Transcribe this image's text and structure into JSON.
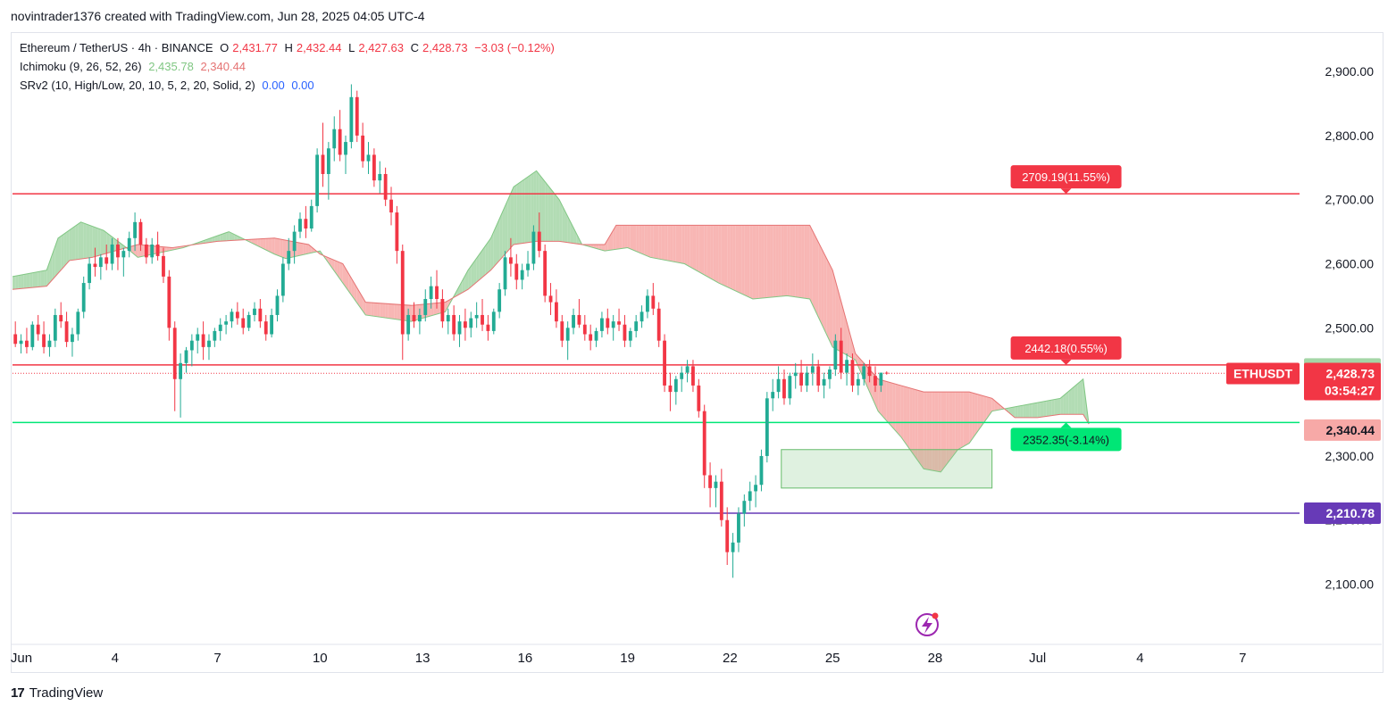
{
  "header": {
    "credit": "novintrader1376 created with TradingView.com, Jun 28, 2025 04:05 UTC-4"
  },
  "legend": {
    "symbol": "Ethereum / TetherUS · 4h · BINANCE",
    "o_label": "O",
    "o_value": "2,431.77",
    "h_label": "H",
    "h_value": "2,432.44",
    "l_label": "L",
    "l_value": "2,427.63",
    "c_label": "C",
    "c_value": "2,428.73",
    "change": "−3.03 (−0.12%)",
    "ichimoku_label": "Ichimoku (9, 26, 52, 26)",
    "ichimoku_v1": "2,435.78",
    "ichimoku_v2": "2,340.44",
    "srv2_label": "SRv2 (10, High/Low, 20, 10, 5, 2, 20, Solid, 2)",
    "srv2_v1": "0.00",
    "srv2_v2": "0.00"
  },
  "footer": {
    "brand": "TradingView",
    "logo": "17"
  },
  "colors": {
    "up": "#22ab94",
    "down": "#f23645",
    "cloud_up": "#a5d6a7",
    "cloud_down": "#f7a9a7",
    "purple": "#673ab7",
    "green_line": "#00e676"
  },
  "chart_data": {
    "type": "candlestick",
    "x_ticks": [
      "Jun",
      "4",
      "7",
      "10",
      "13",
      "16",
      "19",
      "22",
      "25",
      "28",
      "Jul",
      "4",
      "7"
    ],
    "x_tick_index": [
      0,
      18,
      36,
      54,
      72,
      90,
      108,
      126,
      144,
      162,
      180,
      198,
      216
    ],
    "y_ticks": [
      2100,
      2200,
      2300,
      2400,
      2500,
      2600,
      2700,
      2800,
      2900
    ],
    "y_tick_labels": [
      "2,100.00",
      "2,200.00",
      "2,300.00",
      "2,400.00",
      "2,500.00",
      "2,600.00",
      "2,700.00",
      "2,800.00",
      "2,900.00"
    ],
    "ylim": [
      2020,
      2960
    ],
    "xlim": [
      0,
      226
    ],
    "horizontal_lines": [
      {
        "value": 2709.19,
        "color": "#f23645"
      },
      {
        "value": 2442.18,
        "color": "#f23645"
      },
      {
        "value": 2352.35,
        "color": "#00e676"
      },
      {
        "value": 2210.78,
        "color": "#673ab7"
      }
    ],
    "target_labels": [
      {
        "text": "2709.19(11.55%)",
        "value": 2709.19,
        "index": 185,
        "bg": "#f23645"
      },
      {
        "text": "2442.18(0.55%)",
        "value": 2442.18,
        "index": 185,
        "bg": "#f23645"
      },
      {
        "text": "2352.35(-3.14%)",
        "value": 2352.35,
        "index": 185,
        "bg": "#00e676"
      }
    ],
    "price_labels": [
      {
        "text": "2,435.78",
        "value": 2435.78,
        "bg": "#a5d6a7",
        "fg": "#131722"
      },
      {
        "text": "2,428.73",
        "value": 2428.73,
        "bg": "#f23645",
        "fg": "#ffffff",
        "sub": "03:54:27"
      },
      {
        "text": "2,340.44",
        "value": 2340.44,
        "bg": "#f7a9a7",
        "fg": "#131722"
      },
      {
        "text": "2,210.78",
        "value": 2210.78,
        "bg": "#673ab7",
        "fg": "#ffffff"
      }
    ],
    "symbol_tag": "ETHUSDT",
    "demand_zone": {
      "x1": 135,
      "x2": 172,
      "y_low": 2250,
      "y_high": 2310
    },
    "cloud_a": [
      [
        0,
        2580
      ],
      [
        6,
        2590
      ],
      [
        8,
        2640
      ],
      [
        12,
        2665
      ],
      [
        16,
        2652
      ],
      [
        20,
        2625
      ],
      [
        22,
        2610
      ],
      [
        30,
        2625
      ],
      [
        38,
        2650
      ],
      [
        46,
        2615
      ],
      [
        48,
        2608
      ],
      [
        54,
        2620
      ],
      [
        62,
        2520
      ],
      [
        70,
        2510
      ],
      [
        76,
        2525
      ],
      [
        80,
        2590
      ],
      [
        84,
        2640
      ],
      [
        88,
        2720
      ],
      [
        92,
        2745
      ],
      [
        96,
        2700
      ],
      [
        100,
        2630
      ],
      [
        104,
        2620
      ],
      [
        108,
        2625
      ],
      [
        112,
        2610
      ],
      [
        118,
        2600
      ],
      [
        124,
        2570
      ],
      [
        130,
        2545
      ],
      [
        136,
        2550
      ],
      [
        140,
        2545
      ],
      [
        144,
        2470
      ],
      [
        148,
        2450
      ],
      [
        152,
        2370
      ],
      [
        156,
        2330
      ],
      [
        160,
        2280
      ],
      [
        163,
        2275
      ],
      [
        166,
        2310
      ],
      [
        168,
        2320
      ],
      [
        172,
        2370
      ],
      [
        178,
        2380
      ],
      [
        184,
        2390
      ],
      [
        188,
        2420
      ],
      [
        189,
        2350
      ]
    ],
    "cloud_b": [
      [
        0,
        2560
      ],
      [
        6,
        2565
      ],
      [
        10,
        2605
      ],
      [
        14,
        2610
      ],
      [
        18,
        2620
      ],
      [
        22,
        2630
      ],
      [
        28,
        2625
      ],
      [
        36,
        2635
      ],
      [
        46,
        2640
      ],
      [
        52,
        2630
      ],
      [
        54,
        2615
      ],
      [
        58,
        2600
      ],
      [
        62,
        2540
      ],
      [
        70,
        2535
      ],
      [
        76,
        2540
      ],
      [
        80,
        2560
      ],
      [
        84,
        2590
      ],
      [
        88,
        2630
      ],
      [
        92,
        2635
      ],
      [
        96,
        2635
      ],
      [
        100,
        2630
      ],
      [
        104,
        2630
      ],
      [
        106,
        2660
      ],
      [
        116,
        2660
      ],
      [
        124,
        2660
      ],
      [
        130,
        2660
      ],
      [
        140,
        2660
      ],
      [
        144,
        2590
      ],
      [
        148,
        2460
      ],
      [
        152,
        2420
      ],
      [
        156,
        2410
      ],
      [
        160,
        2400
      ],
      [
        164,
        2400
      ],
      [
        168,
        2400
      ],
      [
        172,
        2390
      ],
      [
        176,
        2360
      ],
      [
        180,
        2360
      ],
      [
        184,
        2365
      ],
      [
        188,
        2365
      ],
      [
        189,
        2350
      ]
    ],
    "candles": [
      [
        2490,
        2510,
        2470,
        2475
      ],
      [
        2475,
        2490,
        2460,
        2480
      ],
      [
        2480,
        2500,
        2460,
        2470
      ],
      [
        2470,
        2510,
        2465,
        2505
      ],
      [
        2505,
        2520,
        2480,
        2490
      ],
      [
        2490,
        2510,
        2460,
        2470
      ],
      [
        2470,
        2490,
        2455,
        2480
      ],
      [
        2480,
        2530,
        2470,
        2520
      ],
      [
        2520,
        2540,
        2500,
        2510
      ],
      [
        2510,
        2525,
        2470,
        2478
      ],
      [
        2478,
        2500,
        2455,
        2490
      ],
      [
        2490,
        2530,
        2480,
        2525
      ],
      [
        2525,
        2580,
        2515,
        2570
      ],
      [
        2570,
        2610,
        2560,
        2600
      ],
      [
        2600,
        2625,
        2580,
        2595
      ],
      [
        2595,
        2615,
        2575,
        2610
      ],
      [
        2610,
        2630,
        2590,
        2600
      ],
      [
        2600,
        2640,
        2590,
        2630
      ],
      [
        2630,
        2640,
        2590,
        2610
      ],
      [
        2610,
        2625,
        2580,
        2620
      ],
      [
        2620,
        2650,
        2610,
        2640
      ],
      [
        2640,
        2680,
        2620,
        2665
      ],
      [
        2665,
        2670,
        2620,
        2630
      ],
      [
        2630,
        2640,
        2600,
        2610
      ],
      [
        2610,
        2640,
        2600,
        2630
      ],
      [
        2630,
        2650,
        2605,
        2612
      ],
      [
        2612,
        2625,
        2570,
        2580
      ],
      [
        2580,
        2590,
        2480,
        2500
      ],
      [
        2500,
        2510,
        2370,
        2420
      ],
      [
        2420,
        2460,
        2360,
        2445
      ],
      [
        2445,
        2470,
        2430,
        2465
      ],
      [
        2465,
        2490,
        2440,
        2480
      ],
      [
        2480,
        2500,
        2460,
        2490
      ],
      [
        2490,
        2510,
        2450,
        2470
      ],
      [
        2470,
        2490,
        2450,
        2480
      ],
      [
        2480,
        2500,
        2470,
        2495
      ],
      [
        2495,
        2515,
        2480,
        2505
      ],
      [
        2505,
        2520,
        2490,
        2510
      ],
      [
        2510,
        2530,
        2500,
        2525
      ],
      [
        2525,
        2540,
        2505,
        2515
      ],
      [
        2515,
        2530,
        2490,
        2500
      ],
      [
        2500,
        2525,
        2495,
        2520
      ],
      [
        2520,
        2540,
        2510,
        2530
      ],
      [
        2530,
        2545,
        2500,
        2510
      ],
      [
        2510,
        2520,
        2480,
        2490
      ],
      [
        2490,
        2530,
        2485,
        2520
      ],
      [
        2520,
        2560,
        2510,
        2550
      ],
      [
        2550,
        2610,
        2540,
        2600
      ],
      [
        2600,
        2640,
        2590,
        2620
      ],
      [
        2620,
        2660,
        2600,
        2650
      ],
      [
        2650,
        2680,
        2640,
        2670
      ],
      [
        2670,
        2690,
        2640,
        2655
      ],
      [
        2655,
        2700,
        2650,
        2690
      ],
      [
        2690,
        2780,
        2680,
        2770
      ],
      [
        2770,
        2820,
        2720,
        2740
      ],
      [
        2740,
        2790,
        2700,
        2780
      ],
      [
        2780,
        2830,
        2760,
        2810
      ],
      [
        2810,
        2840,
        2760,
        2770
      ],
      [
        2770,
        2800,
        2740,
        2790
      ],
      [
        2790,
        2880,
        2780,
        2860
      ],
      [
        2860,
        2870,
        2790,
        2800
      ],
      [
        2800,
        2820,
        2750,
        2760
      ],
      [
        2760,
        2790,
        2740,
        2770
      ],
      [
        2770,
        2780,
        2720,
        2730
      ],
      [
        2730,
        2760,
        2710,
        2740
      ],
      [
        2740,
        2750,
        2690,
        2700
      ],
      [
        2700,
        2720,
        2660,
        2680
      ],
      [
        2680,
        2690,
        2600,
        2620
      ],
      [
        2620,
        2630,
        2450,
        2490
      ],
      [
        2490,
        2530,
        2480,
        2520
      ],
      [
        2520,
        2540,
        2500,
        2510
      ],
      [
        2510,
        2530,
        2490,
        2520
      ],
      [
        2520,
        2560,
        2510,
        2545
      ],
      [
        2545,
        2580,
        2530,
        2565
      ],
      [
        2565,
        2590,
        2530,
        2545
      ],
      [
        2545,
        2560,
        2500,
        2510
      ],
      [
        2510,
        2530,
        2490,
        2520
      ],
      [
        2520,
        2535,
        2480,
        2490
      ],
      [
        2490,
        2520,
        2470,
        2510
      ],
      [
        2510,
        2530,
        2480,
        2500
      ],
      [
        2500,
        2525,
        2485,
        2515
      ],
      [
        2515,
        2540,
        2500,
        2520
      ],
      [
        2520,
        2545,
        2495,
        2505
      ],
      [
        2505,
        2520,
        2480,
        2495
      ],
      [
        2495,
        2530,
        2490,
        2525
      ],
      [
        2525,
        2570,
        2515,
        2560
      ],
      [
        2560,
        2620,
        2550,
        2610
      ],
      [
        2610,
        2640,
        2580,
        2600
      ],
      [
        2600,
        2615,
        2560,
        2575
      ],
      [
        2575,
        2600,
        2560,
        2590
      ],
      [
        2590,
        2620,
        2580,
        2600
      ],
      [
        2600,
        2660,
        2590,
        2650
      ],
      [
        2650,
        2680,
        2610,
        2620
      ],
      [
        2620,
        2630,
        2540,
        2550
      ],
      [
        2550,
        2570,
        2520,
        2540
      ],
      [
        2540,
        2560,
        2500,
        2510
      ],
      [
        2510,
        2520,
        2470,
        2480
      ],
      [
        2480,
        2510,
        2450,
        2500
      ],
      [
        2500,
        2530,
        2490,
        2520
      ],
      [
        2520,
        2545,
        2500,
        2505
      ],
      [
        2505,
        2520,
        2480,
        2490
      ],
      [
        2490,
        2505,
        2465,
        2480
      ],
      [
        2480,
        2500,
        2470,
        2495
      ],
      [
        2495,
        2525,
        2485,
        2515
      ],
      [
        2515,
        2530,
        2490,
        2500
      ],
      [
        2500,
        2520,
        2480,
        2510
      ],
      [
        2510,
        2530,
        2495,
        2505
      ],
      [
        2505,
        2520,
        2470,
        2480
      ],
      [
        2480,
        2500,
        2470,
        2495
      ],
      [
        2495,
        2520,
        2485,
        2510
      ],
      [
        2510,
        2535,
        2500,
        2525
      ],
      [
        2525,
        2560,
        2515,
        2550
      ],
      [
        2550,
        2570,
        2520,
        2530
      ],
      [
        2530,
        2540,
        2470,
        2480
      ],
      [
        2480,
        2490,
        2400,
        2410
      ],
      [
        2410,
        2430,
        2370,
        2400
      ],
      [
        2400,
        2425,
        2380,
        2420
      ],
      [
        2420,
        2440,
        2400,
        2430
      ],
      [
        2430,
        2450,
        2415,
        2440
      ],
      [
        2440,
        2450,
        2400,
        2410
      ],
      [
        2410,
        2420,
        2360,
        2370
      ],
      [
        2370,
        2380,
        2250,
        2270
      ],
      [
        2270,
        2290,
        2220,
        2250
      ],
      [
        2250,
        2270,
        2220,
        2260
      ],
      [
        2260,
        2280,
        2190,
        2200
      ],
      [
        2200,
        2220,
        2130,
        2150
      ],
      [
        2150,
        2180,
        2110,
        2165
      ],
      [
        2165,
        2220,
        2150,
        2210
      ],
      [
        2210,
        2240,
        2190,
        2230
      ],
      [
        2230,
        2260,
        2215,
        2245
      ],
      [
        2245,
        2270,
        2220,
        2255
      ],
      [
        2255,
        2310,
        2245,
        2300
      ],
      [
        2300,
        2400,
        2290,
        2390
      ],
      [
        2390,
        2420,
        2370,
        2400
      ],
      [
        2400,
        2440,
        2390,
        2420
      ],
      [
        2420,
        2435,
        2380,
        2390
      ],
      [
        2390,
        2430,
        2380,
        2425
      ],
      [
        2425,
        2445,
        2405,
        2430
      ],
      [
        2430,
        2450,
        2400,
        2410
      ],
      [
        2410,
        2440,
        2400,
        2430
      ],
      [
        2430,
        2460,
        2410,
        2440
      ],
      [
        2440,
        2450,
        2400,
        2410
      ],
      [
        2410,
        2430,
        2390,
        2420
      ],
      [
        2420,
        2440,
        2405,
        2435
      ],
      [
        2435,
        2490,
        2425,
        2480
      ],
      [
        2480,
        2500,
        2420,
        2430
      ],
      [
        2430,
        2460,
        2410,
        2450
      ],
      [
        2450,
        2460,
        2400,
        2410
      ],
      [
        2410,
        2430,
        2395,
        2420
      ],
      [
        2420,
        2445,
        2410,
        2440
      ],
      [
        2440,
        2450,
        2415,
        2425
      ],
      [
        2425,
        2440,
        2400,
        2410
      ],
      [
        2410,
        2430,
        2400,
        2430
      ],
      [
        2430,
        2432,
        2427,
        2429
      ]
    ]
  }
}
